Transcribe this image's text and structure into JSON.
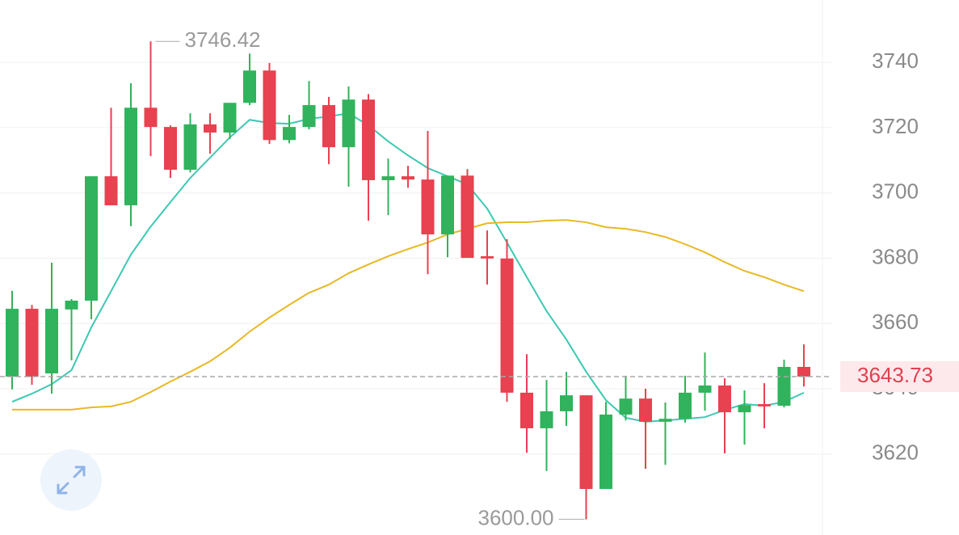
{
  "chart_data": {
    "type": "candlestick",
    "up_color": "#30b35c",
    "down_color": "#e8414f",
    "ylim": [
      3595.2,
      3759.1
    ],
    "yticks": [
      3620,
      3640,
      3660,
      3680,
      3700,
      3720,
      3740
    ],
    "grid": true,
    "open": [
      3643.7,
      3664.5,
      3644.7,
      3664.3,
      3667,
      3705.1,
      3696.2,
      3726.1,
      3720.2,
      3707.1,
      3721,
      3718.5,
      3727.6,
      3737.5,
      3716.2,
      3720.2,
      3726.9,
      3714,
      3728.6,
      3703.9,
      3705.1,
      3704.1,
      3687.3,
      3705.3,
      3680.6,
      3679.9,
      3638.8,
      3627.9,
      3633.1,
      3638,
      3609.3,
      3632.1,
      3637,
      3629.9,
      3630.8,
      3638.8,
      3641,
      3632.8,
      3635.3,
      3634.8,
      3646.7
    ],
    "high": [
      3670,
      3665.7,
      3678.6,
      3667.5,
      3705.1,
      3726.1,
      3733.6,
      3746.42,
      3720.7,
      3724.4,
      3724.4,
      3727.6,
      3742.7,
      3739.8,
      3723.9,
      3734.3,
      3729.4,
      3732.6,
      3730.3,
      3710.5,
      3708.3,
      3719,
      3705.3,
      3707.3,
      3688.5,
      3685.8,
      3650.6,
      3642.7,
      3645.2,
      3638,
      3636,
      3644,
      3640,
      3635.8,
      3644,
      3651.1,
      3643.2,
      3639.5,
      3641.7,
      3648.9,
      3653.6
    ],
    "low": [
      3639.8,
      3641.2,
      3638.5,
      3648.7,
      3661.3,
      3696.2,
      3689.8,
      3711.3,
      3704.6,
      3706.3,
      3712,
      3716.5,
      3726.9,
      3715,
      3715.2,
      3719.5,
      3708.8,
      3701.9,
      3691.5,
      3693.2,
      3701.6,
      3675.1,
      3680.3,
      3680.1,
      3671.9,
      3636,
      3620.4,
      3614.8,
      3628.6,
      3600,
      3609.3,
      3630.3,
      3615.5,
      3616.7,
      3629.6,
      3633.3,
      3620.2,
      3622.9,
      3627.9,
      3634.3,
      3640.7
    ],
    "close": [
      3664.5,
      3643.7,
      3664.5,
      3667,
      3705.1,
      3696.2,
      3726.1,
      3720.2,
      3707.1,
      3721,
      3718.5,
      3727.6,
      3737.5,
      3716.2,
      3720.2,
      3726.9,
      3714,
      3728.6,
      3703.9,
      3705.1,
      3704.1,
      3687.3,
      3705.3,
      3680.1,
      3679.9,
      3638.8,
      3627.9,
      3633.1,
      3638,
      3609.3,
      3632.1,
      3637,
      3629.9,
      3630.8,
      3638.8,
      3641,
      3632.8,
      3635,
      3634.6,
      3646.7,
      3643.73
    ],
    "lines": [
      {
        "color": "#3cc9b2",
        "values": [
          3636,
          3638.5,
          3641.4,
          3645.7,
          3658.8,
          3669.9,
          3681.1,
          3689.7,
          3697.2,
          3704.6,
          3710.8,
          3717,
          3722.4,
          3721.4,
          3721.2,
          3722.7,
          3723.4,
          3724.4,
          3720.7,
          3715.8,
          3711.5,
          3707.6,
          3705.1,
          3702.6,
          3695.2,
          3684.8,
          3674.2,
          3663.8,
          3655.1,
          3645.2,
          3636.5,
          3631.1,
          3629.9,
          3630.3,
          3630.8,
          3631.3,
          3633.5,
          3635.3,
          3634.8,
          3636,
          3638.8
        ]
      },
      {
        "color": "#e8b923",
        "values": [
          3633.6,
          3633.6,
          3633.6,
          3633.6,
          3634.3,
          3634.6,
          3636,
          3639,
          3642.2,
          3645.2,
          3648.4,
          3652.6,
          3657.5,
          3661.8,
          3665.7,
          3669.4,
          3671.9,
          3675.4,
          3678.1,
          3680.6,
          3682.8,
          3684.8,
          3687.3,
          3689,
          3690.7,
          3691,
          3691,
          3691.5,
          3691.7,
          3691,
          3689.5,
          3689,
          3688,
          3686.5,
          3684.3,
          3681.8,
          3678.8,
          3676.1,
          3674.2,
          3671.9,
          3669.9
        ]
      }
    ],
    "high_marker": 3746.42,
    "low_marker": {
      "value": 3600,
      "label": "3600.00"
    },
    "last_price": 3643.73
  }
}
